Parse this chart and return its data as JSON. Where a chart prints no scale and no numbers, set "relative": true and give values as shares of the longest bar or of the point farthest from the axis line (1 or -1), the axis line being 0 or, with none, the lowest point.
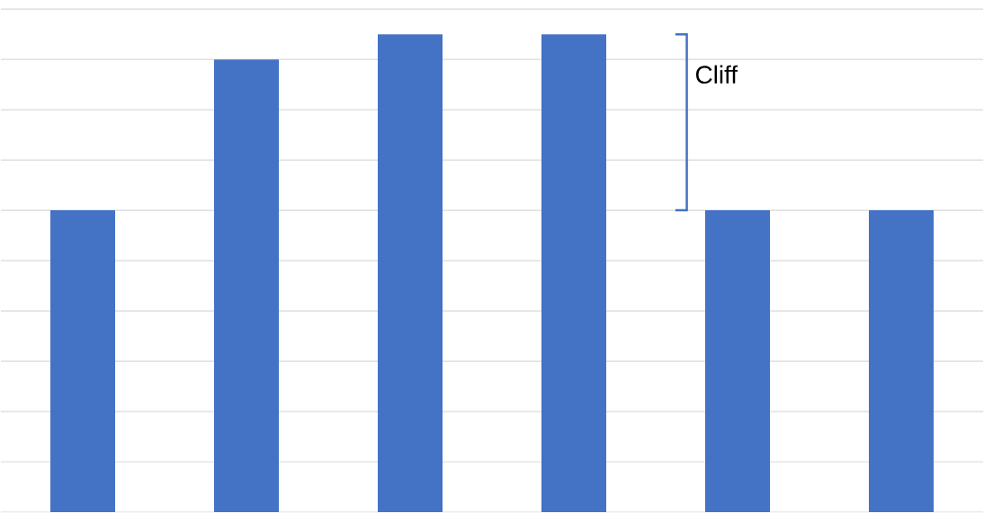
{
  "chart_data": {
    "type": "bar",
    "relative": true,
    "categories": [
      null,
      null,
      null,
      null,
      null,
      null
    ],
    "values": [
      0.632,
      0.947,
      1,
      1,
      0.632,
      0.632
    ],
    "color": "#4472c4",
    "grid": "y",
    "annotations": [
      "Cliff"
    ]
  }
}
